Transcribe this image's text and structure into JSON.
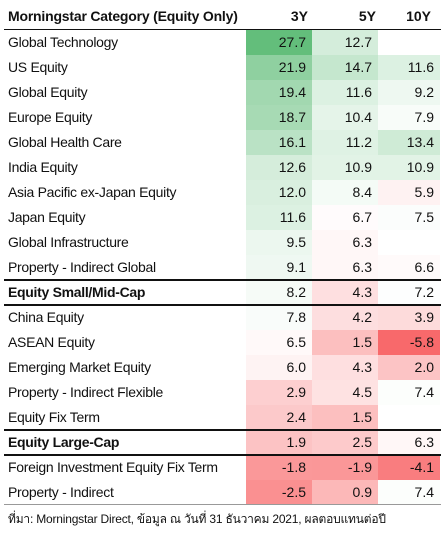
{
  "chart_data": {
    "type": "heatmap",
    "header": {
      "category": "Morningstar Category (Equity Only)",
      "periods": [
        "3Y",
        "5Y",
        "10Y"
      ]
    },
    "rows": [
      {
        "label": "Global Technology",
        "bold": false,
        "values": [
          27.7,
          12.7,
          null
        ]
      },
      {
        "label": "US Equity",
        "bold": false,
        "values": [
          21.9,
          14.7,
          11.6
        ]
      },
      {
        "label": "Global Equity",
        "bold": false,
        "values": [
          19.4,
          11.6,
          9.2
        ]
      },
      {
        "label": "Europe Equity",
        "bold": false,
        "values": [
          18.7,
          10.4,
          7.9
        ]
      },
      {
        "label": "Global Health Care",
        "bold": false,
        "values": [
          16.1,
          11.2,
          13.4
        ]
      },
      {
        "label": "India Equity",
        "bold": false,
        "values": [
          12.6,
          10.9,
          10.9
        ]
      },
      {
        "label": "Asia Pacific ex-Japan Equity",
        "bold": false,
        "values": [
          12.0,
          8.4,
          5.9
        ]
      },
      {
        "label": "Japan Equity",
        "bold": false,
        "values": [
          11.6,
          6.7,
          7.5
        ]
      },
      {
        "label": "Global Infrastructure",
        "bold": false,
        "values": [
          9.5,
          6.3,
          null
        ]
      },
      {
        "label": "Property - Indirect Global",
        "bold": false,
        "values": [
          9.1,
          6.3,
          6.6
        ]
      },
      {
        "label": "Equity Small/Mid-Cap",
        "bold": true,
        "values": [
          8.2,
          4.3,
          7.2
        ]
      },
      {
        "label": "China Equity",
        "bold": false,
        "values": [
          7.8,
          4.2,
          3.9
        ]
      },
      {
        "label": "ASEAN Equity",
        "bold": false,
        "values": [
          6.5,
          1.5,
          -5.8
        ]
      },
      {
        "label": "Emerging Market Equity",
        "bold": false,
        "values": [
          6.0,
          4.3,
          2.0
        ]
      },
      {
        "label": "Property - Indirect Flexible",
        "bold": false,
        "values": [
          2.9,
          4.5,
          7.4
        ]
      },
      {
        "label": "Equity Fix Term",
        "bold": false,
        "values": [
          2.4,
          1.5,
          null
        ]
      },
      {
        "label": "Equity Large-Cap",
        "bold": true,
        "values": [
          1.9,
          2.5,
          6.3
        ]
      },
      {
        "label": "Foreign Investment Equity Fix Term",
        "bold": false,
        "values": [
          -1.8,
          -1.9,
          -4.1
        ]
      },
      {
        "label": "Property - Indirect",
        "bold": false,
        "values": [
          -2.5,
          0.9,
          7.4
        ]
      }
    ],
    "separators_after_rows": [
      9,
      10,
      15,
      16
    ],
    "color_scale": {
      "high": "#63be7b",
      "mid": "#ffffff",
      "low": "#f8696b",
      "max": 27.7,
      "mid_value": 7.0,
      "min": -5.8
    }
  },
  "source": "ที่มา: Morningstar Direct, ข้อมูล ณ วันที่ 31 ธันวาคม 2021, ผลตอบแทนต่อปี"
}
